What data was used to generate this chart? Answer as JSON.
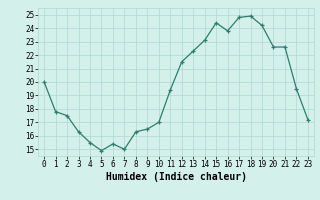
{
  "x": [
    0,
    1,
    2,
    3,
    4,
    5,
    6,
    7,
    8,
    9,
    10,
    11,
    12,
    13,
    14,
    15,
    16,
    17,
    18,
    19,
    20,
    21,
    22,
    23
  ],
  "y": [
    20,
    17.8,
    17.5,
    16.3,
    15.5,
    14.9,
    15.4,
    15.0,
    16.3,
    16.5,
    17.0,
    19.4,
    21.5,
    22.3,
    23.1,
    24.4,
    23.8,
    24.8,
    24.9,
    24.2,
    22.6,
    22.6,
    19.5,
    17.2
  ],
  "line_color": "#2e7d6e",
  "marker": "+",
  "bg_color": "#d4f0eb",
  "grid_color": "#b0d8d2",
  "xlabel": "Humidex (Indice chaleur)",
  "xlim": [
    -0.5,
    23.5
  ],
  "ylim": [
    14.5,
    25.5
  ],
  "yticks": [
    15,
    16,
    17,
    18,
    19,
    20,
    21,
    22,
    23,
    24,
    25
  ],
  "xticks": [
    0,
    1,
    2,
    3,
    4,
    5,
    6,
    7,
    8,
    9,
    10,
    11,
    12,
    13,
    14,
    15,
    16,
    17,
    18,
    19,
    20,
    21,
    22,
    23
  ],
  "tick_fontsize": 5.5,
  "label_fontsize": 7
}
